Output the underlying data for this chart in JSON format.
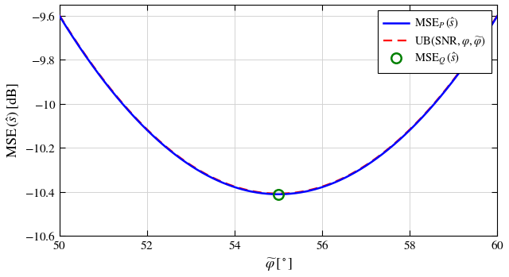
{
  "x_min": 50,
  "x_max": 60,
  "y_min": -10.6,
  "y_max": -9.55,
  "x_ticks": [
    50,
    52,
    54,
    56,
    58,
    60
  ],
  "y_ticks": [
    -10.6,
    -10.4,
    -10.2,
    -10.0,
    -9.8,
    -9.6
  ],
  "xlabel": "$\\widetilde{\\varphi}\\,[^\\circ]$",
  "ylabel": "$\\mathrm{MSE}\\,(\\hat{s})\\;[\\mathrm{dB}]$",
  "min_x": 55.0,
  "min_y": -10.41,
  "parabola_a": 0.0324,
  "parabola_x0": 55.0,
  "parabola_y0": -10.41,
  "line_color_blue": "#0000FF",
  "line_color_red": "#FF0000",
  "marker_color_green": "#008000",
  "legend_label_blue": "$\\mathrm{MSE}_P\\,(\\hat{s})$",
  "legend_label_red": "$\\mathrm{UB}(\\mathrm{SNR},\\varphi,\\widetilde{\\varphi})$",
  "legend_label_green": "$\\mathrm{MSE}_Q\\,(\\hat{s})$",
  "background_color": "#FFFFFF",
  "grid_color": "#D3D3D3",
  "fig_width": 6.4,
  "fig_height": 3.49,
  "dpi": 100
}
